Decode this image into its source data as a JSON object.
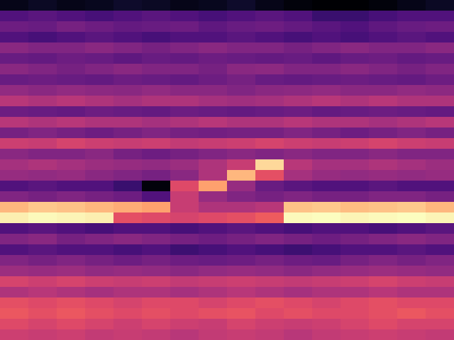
{
  "chart_data": {
    "type": "heatmap",
    "color": "magma",
    "tick_labels": false,
    "cells": [
      [
        0.12,
        0.14,
        0.12,
        0.13,
        0.15,
        0.14,
        0.12,
        0.13,
        0.15,
        0.12,
        0.1,
        0.08,
        0.08,
        0.1,
        0.12,
        0.14
      ],
      [
        0.3,
        0.32,
        0.3,
        0.28,
        0.3,
        0.32,
        0.3,
        0.28,
        0.3,
        0.32,
        0.3,
        0.25,
        0.25,
        0.28,
        0.3,
        0.3
      ],
      [
        0.36,
        0.35,
        0.38,
        0.36,
        0.34,
        0.35,
        0.36,
        0.33,
        0.35,
        0.36,
        0.34,
        0.32,
        0.3,
        0.33,
        0.35,
        0.36
      ],
      [
        0.3,
        0.28,
        0.3,
        0.32,
        0.3,
        0.28,
        0.3,
        0.3,
        0.32,
        0.3,
        0.28,
        0.3,
        0.28,
        0.3,
        0.32,
        0.3
      ],
      [
        0.42,
        0.4,
        0.4,
        0.42,
        0.4,
        0.38,
        0.4,
        0.42,
        0.4,
        0.4,
        0.38,
        0.4,
        0.42,
        0.4,
        0.4,
        0.42
      ],
      [
        0.35,
        0.34,
        0.36,
        0.35,
        0.33,
        0.35,
        0.34,
        0.36,
        0.35,
        0.34,
        0.35,
        0.33,
        0.35,
        0.36,
        0.34,
        0.35
      ],
      [
        0.42,
        0.4,
        0.38,
        0.4,
        0.42,
        0.4,
        0.4,
        0.38,
        0.42,
        0.43,
        0.4,
        0.4,
        0.42,
        0.4,
        0.38,
        0.4
      ],
      [
        0.35,
        0.36,
        0.35,
        0.34,
        0.36,
        0.35,
        0.34,
        0.36,
        0.38,
        0.35,
        0.34,
        0.35,
        0.36,
        0.35,
        0.34,
        0.36
      ],
      [
        0.44,
        0.42,
        0.44,
        0.43,
        0.42,
        0.44,
        0.42,
        0.42,
        0.4,
        0.42,
        0.43,
        0.44,
        0.42,
        0.42,
        0.44,
        0.43
      ],
      [
        0.52,
        0.5,
        0.52,
        0.5,
        0.48,
        0.5,
        0.5,
        0.48,
        0.47,
        0.48,
        0.5,
        0.52,
        0.5,
        0.52,
        0.5,
        0.5
      ],
      [
        0.36,
        0.35,
        0.34,
        0.36,
        0.35,
        0.34,
        0.36,
        0.35,
        0.34,
        0.35,
        0.36,
        0.34,
        0.35,
        0.36,
        0.35,
        0.34
      ],
      [
        0.52,
        0.5,
        0.52,
        0.5,
        0.5,
        0.48,
        0.5,
        0.52,
        0.5,
        0.5,
        0.52,
        0.5,
        0.5,
        0.48,
        0.5,
        0.52
      ],
      [
        0.38,
        0.4,
        0.38,
        0.36,
        0.38,
        0.4,
        0.38,
        0.37,
        0.38,
        0.38,
        0.4,
        0.38,
        0.36,
        0.38,
        0.4,
        0.38
      ],
      [
        0.56,
        0.55,
        0.58,
        0.56,
        0.55,
        0.56,
        0.54,
        0.55,
        0.56,
        0.58,
        0.56,
        0.55,
        0.56,
        0.58,
        0.56,
        0.55
      ],
      [
        0.42,
        0.4,
        0.4,
        0.42,
        0.38,
        0.36,
        0.38,
        0.4,
        0.42,
        0.4,
        0.42,
        0.4,
        0.4,
        0.42,
        0.4,
        0.4
      ],
      [
        0.48,
        0.5,
        0.48,
        0.46,
        0.45,
        0.44,
        0.46,
        0.5,
        0.55,
        0.88,
        0.52,
        0.48,
        0.48,
        0.5,
        0.48,
        0.46
      ],
      [
        0.45,
        0.44,
        0.45,
        0.42,
        0.4,
        0.38,
        0.42,
        0.5,
        0.82,
        0.62,
        0.48,
        0.45,
        0.44,
        0.45,
        0.44,
        0.45
      ],
      [
        0.3,
        0.32,
        0.3,
        0.3,
        0.25,
        0.1,
        0.6,
        0.78,
        0.45,
        0.35,
        0.32,
        0.3,
        0.3,
        0.32,
        0.3,
        0.3
      ],
      [
        0.4,
        0.38,
        0.4,
        0.38,
        0.36,
        0.3,
        0.55,
        0.45,
        0.4,
        0.38,
        0.4,
        0.38,
        0.38,
        0.4,
        0.4,
        0.38
      ],
      [
        0.82,
        0.85,
        0.84,
        0.82,
        0.8,
        0.78,
        0.55,
        0.5,
        0.5,
        0.52,
        0.84,
        0.85,
        0.83,
        0.84,
        0.85,
        0.82
      ],
      [
        0.92,
        0.94,
        0.93,
        0.92,
        0.62,
        0.6,
        0.58,
        0.6,
        0.62,
        0.65,
        0.94,
        0.95,
        0.93,
        0.94,
        0.95,
        0.93
      ],
      [
        0.3,
        0.32,
        0.3,
        0.28,
        0.3,
        0.3,
        0.28,
        0.3,
        0.32,
        0.3,
        0.28,
        0.3,
        0.3,
        0.28,
        0.3,
        0.32
      ],
      [
        0.4,
        0.42,
        0.38,
        0.4,
        0.42,
        0.4,
        0.38,
        0.36,
        0.38,
        0.4,
        0.38,
        0.36,
        0.38,
        0.4,
        0.42,
        0.4
      ],
      [
        0.3,
        0.32,
        0.3,
        0.3,
        0.28,
        0.3,
        0.26,
        0.28,
        0.3,
        0.28,
        0.26,
        0.28,
        0.3,
        0.3,
        0.32,
        0.3
      ],
      [
        0.4,
        0.38,
        0.4,
        0.38,
        0.36,
        0.38,
        0.36,
        0.35,
        0.36,
        0.38,
        0.36,
        0.35,
        0.38,
        0.4,
        0.38,
        0.4
      ],
      [
        0.46,
        0.45,
        0.46,
        0.44,
        0.45,
        0.44,
        0.42,
        0.44,
        0.45,
        0.44,
        0.42,
        0.44,
        0.45,
        0.46,
        0.45,
        0.44
      ],
      [
        0.58,
        0.56,
        0.58,
        0.56,
        0.55,
        0.56,
        0.54,
        0.55,
        0.56,
        0.55,
        0.54,
        0.55,
        0.56,
        0.58,
        0.56,
        0.55
      ],
      [
        0.5,
        0.52,
        0.5,
        0.48,
        0.5,
        0.5,
        0.48,
        0.5,
        0.52,
        0.5,
        0.48,
        0.5,
        0.5,
        0.52,
        0.5,
        0.5
      ],
      [
        0.62,
        0.6,
        0.62,
        0.6,
        0.58,
        0.6,
        0.6,
        0.58,
        0.6,
        0.62,
        0.6,
        0.58,
        0.6,
        0.62,
        0.6,
        0.6
      ],
      [
        0.64,
        0.62,
        0.64,
        0.62,
        0.6,
        0.62,
        0.6,
        0.62,
        0.63,
        0.6,
        0.62,
        0.6,
        0.6,
        0.62,
        0.64,
        0.62
      ],
      [
        0.6,
        0.58,
        0.6,
        0.58,
        0.56,
        0.58,
        0.56,
        0.55,
        0.58,
        0.56,
        0.55,
        0.56,
        0.58,
        0.6,
        0.58,
        0.58
      ],
      [
        0.56,
        0.55,
        0.56,
        0.54,
        0.55,
        0.54,
        0.52,
        0.54,
        0.55,
        0.54,
        0.52,
        0.54,
        0.55,
        0.56,
        0.55,
        0.54
      ]
    ]
  }
}
